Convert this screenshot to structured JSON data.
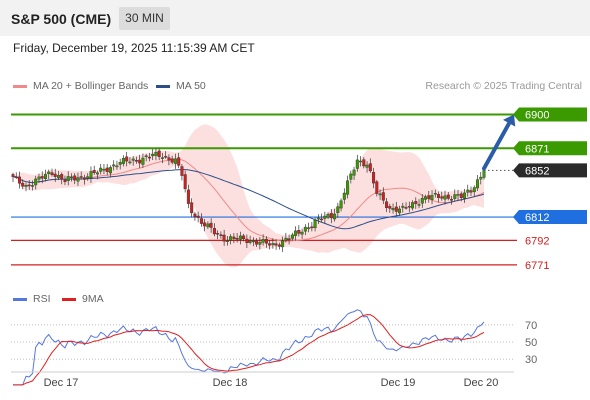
{
  "header": {
    "title": "S&P 500 (CME)",
    "interval": "30 MIN",
    "datetime": "Friday, December 19, 2025 11:15:39 AM CET"
  },
  "legend": {
    "main": [
      {
        "label": "MA 20 + Bollinger Bands",
        "color": "#f08a8a"
      },
      {
        "label": "MA 50",
        "color": "#2c4f8a"
      }
    ],
    "credit": "Research © 2025 Trading Central",
    "rsi": [
      {
        "label": "RSI",
        "color": "#5577dd"
      },
      {
        "label": "9MA",
        "color": "#e02020"
      }
    ]
  },
  "chart_data": [
    {
      "type": "candlestick",
      "title": "S&P 500 (CME)",
      "interval": "30 MIN",
      "x_labels": [
        "Dec 17",
        "Dec 18",
        "Dec 19",
        "Dec 20"
      ],
      "ylim": [
        6752,
        6915
      ],
      "levels": [
        {
          "value": 6900,
          "label": "6900",
          "kind": "resistance",
          "color": "#3a9a00"
        },
        {
          "value": 6871,
          "label": "6871",
          "kind": "resistance",
          "color": "#3a9a00"
        },
        {
          "value": 6852,
          "label": "6852",
          "kind": "last",
          "color": "#2b2b2b"
        },
        {
          "value": 6812,
          "label": "6812",
          "kind": "pivot",
          "color": "#1f6fe0"
        },
        {
          "value": 6792,
          "label": "6792",
          "kind": "support",
          "color": "#d02020"
        },
        {
          "value": 6771,
          "label": "6771",
          "kind": "support",
          "color": "#d02020"
        }
      ],
      "colors": {
        "up": "#3a9a00",
        "down": "#d02020",
        "ma20": "#f08a8a",
        "ma50": "#2c4f8a",
        "band": "#fbd4d4",
        "arrow": "#2a5ca8"
      },
      "arrow": {
        "from": 6852,
        "to": 6900
      }
    },
    {
      "type": "line",
      "title": "",
      "series": [
        {
          "name": "RSI"
        },
        {
          "name": "9MA"
        }
      ],
      "yticks": [
        70,
        50,
        30
      ],
      "ylim": [
        15,
        85
      ]
    }
  ]
}
